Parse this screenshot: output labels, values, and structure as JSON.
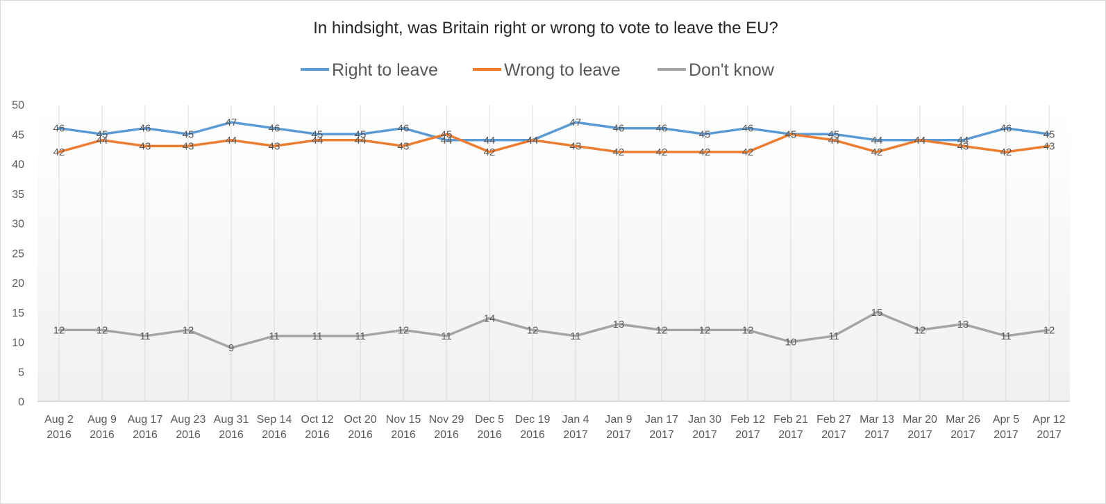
{
  "chart_data": {
    "type": "line",
    "title": "In hindsight, was Britain right or wrong to vote to leave the EU?",
    "xlabel": "",
    "ylabel": "",
    "ylim": [
      0,
      50
    ],
    "yticks": [
      0,
      5,
      10,
      15,
      20,
      25,
      30,
      35,
      40,
      45,
      50
    ],
    "grid": "vertical",
    "legend_position": "top",
    "categories": [
      [
        "Aug 2",
        "2016"
      ],
      [
        "Aug 9",
        "2016"
      ],
      [
        "Aug 17",
        "2016"
      ],
      [
        "Aug 23",
        "2016"
      ],
      [
        "Aug 31",
        "2016"
      ],
      [
        "Sep 14",
        "2016"
      ],
      [
        "Oct 12",
        "2016"
      ],
      [
        "Oct 20",
        "2016"
      ],
      [
        "Nov 15",
        "2016"
      ],
      [
        "Nov 29",
        "2016"
      ],
      [
        "Dec 5",
        "2016"
      ],
      [
        "Dec 19",
        "2016"
      ],
      [
        "Jan 4",
        "2017"
      ],
      [
        "Jan 9",
        "2017"
      ],
      [
        "Jan 17",
        "2017"
      ],
      [
        "Jan 30",
        "2017"
      ],
      [
        "Feb 12",
        "2017"
      ],
      [
        "Feb 21",
        "2017"
      ],
      [
        "Feb 27",
        "2017"
      ],
      [
        "Mar 13",
        "2017"
      ],
      [
        "Mar 20",
        "2017"
      ],
      [
        "Mar 26",
        "2017"
      ],
      [
        "Apr 5",
        "2017"
      ],
      [
        "Apr 12",
        "2017"
      ]
    ],
    "series": [
      {
        "name": "Right to leave",
        "color": "#5b9bd5",
        "values": [
          46,
          45,
          46,
          45,
          47,
          46,
          45,
          45,
          46,
          44,
          44,
          44,
          47,
          46,
          46,
          45,
          46,
          45,
          45,
          44,
          44,
          44,
          46,
          45
        ]
      },
      {
        "name": "Wrong to leave",
        "color": "#ed7d31",
        "values": [
          42,
          44,
          43,
          43,
          44,
          43,
          44,
          44,
          43,
          45,
          42,
          44,
          43,
          42,
          42,
          42,
          42,
          45,
          44,
          42,
          44,
          43,
          42,
          43
        ]
      },
      {
        "name": "Don't know",
        "color": "#a5a5a5",
        "values": [
          12,
          12,
          11,
          12,
          9,
          11,
          11,
          11,
          12,
          11,
          14,
          12,
          11,
          13,
          12,
          12,
          12,
          10,
          11,
          15,
          12,
          13,
          11,
          12
        ]
      }
    ]
  }
}
